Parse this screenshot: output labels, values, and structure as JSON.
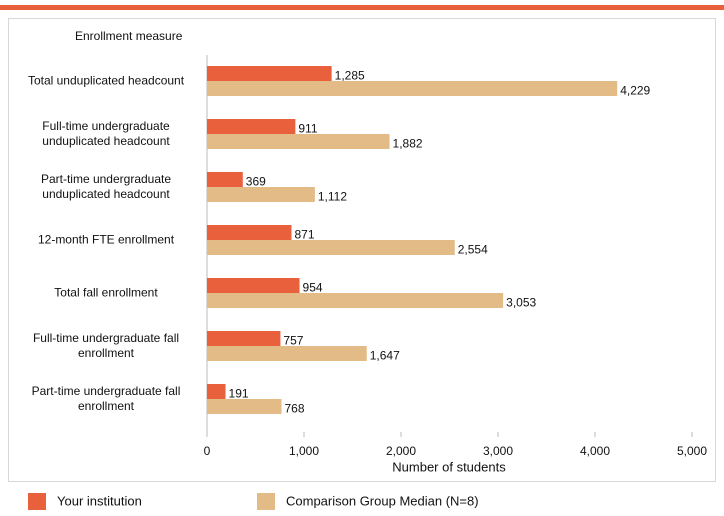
{
  "chart_data": {
    "type": "hbar",
    "y_axis_title": "Enrollment measure",
    "x_axis_title": "Number of students",
    "categories": [
      "Total unduplicated headcount",
      "Full-time undergraduate unduplicated headcount",
      "Part-time undergraduate unduplicated headcount",
      "12-month FTE enrollment",
      "Total fall enrollment",
      "Full-time undergraduate fall enrollment",
      "Part-time undergraduate fall enrollment"
    ],
    "series": [
      {
        "name": "Your institution",
        "color": "#e8603c",
        "values": [
          1285,
          911,
          369,
          871,
          954,
          757,
          191
        ],
        "value_labels": [
          "1,285",
          "911",
          "369",
          "871",
          "954",
          "757",
          "191"
        ]
      },
      {
        "name": "Comparison Group Median (N=8)",
        "color": "#e3bb87",
        "values": [
          4229,
          1882,
          1112,
          2554,
          3053,
          1647,
          768
        ],
        "value_labels": [
          "4,229",
          "1,882",
          "1,112",
          "2,554",
          "3,053",
          "1,647",
          "768"
        ]
      }
    ],
    "xlim": [
      0,
      5000
    ],
    "xticks": [
      0,
      {
        "value": 1000,
        "label": "1,000"
      },
      {
        "value": 2000,
        "label": "2,000"
      },
      {
        "value": 3000,
        "label": "3,000"
      },
      {
        "value": 4000,
        "label": "4,000"
      },
      {
        "value": 5000,
        "label": "5,000"
      }
    ],
    "legend": "bottom"
  }
}
